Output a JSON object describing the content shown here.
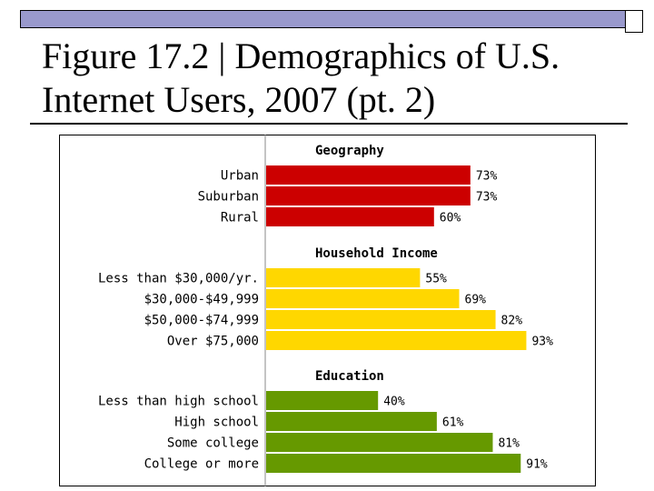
{
  "slide": {
    "title_line1": "Figure 17.2 | Demographics of U.S.",
    "title_line2": "Internet Users, 2007 (pt. 2)"
  },
  "colors": {
    "top_bar": "#9999cc",
    "geography": "#cc0000",
    "household_income": "#ffd700",
    "education": "#669900"
  },
  "chart_data": {
    "type": "bar",
    "orientation": "horizontal",
    "unit": "%",
    "groups": [
      {
        "name": "Geography",
        "color": "#cc0000",
        "categories": [
          "Urban",
          "Suburban",
          "Rural"
        ],
        "values": [
          73,
          73,
          60
        ],
        "labels": [
          "73%",
          "73%",
          "60%"
        ]
      },
      {
        "name": "Household Income",
        "color": "#ffd700",
        "categories": [
          "Less than $30,000/yr.",
          "$30,000-$49,999",
          "$50,000-$74,999",
          "Over $75,000"
        ],
        "values": [
          55,
          69,
          82,
          93
        ],
        "labels": [
          "55%",
          "69%",
          "82%",
          "93%"
        ]
      },
      {
        "name": "Education",
        "color": "#669900",
        "categories": [
          "Less than high school",
          "High school",
          "Some college",
          "College or more"
        ],
        "values": [
          40,
          61,
          81,
          91
        ],
        "labels": [
          "40%",
          "61%",
          "81%",
          "91%"
        ]
      }
    ]
  }
}
